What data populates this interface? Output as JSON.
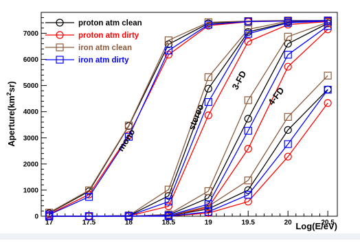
{
  "chart_data": {
    "type": "line",
    "title": "",
    "xlabel": "Log(E/eV)",
    "ylabel": "Aperture(km²sr)",
    "ylabel_parts": {
      "prefix": "Aperture(km",
      "sup": "2",
      "suffix": "sr)"
    },
    "xlim": [
      16.9,
      20.62
    ],
    "ylim": [
      0,
      7800
    ],
    "x_ticks": [
      17,
      17.5,
      18,
      18.5,
      19,
      19.5,
      20,
      20.5
    ],
    "x_tick_labels": [
      "17",
      "17.5",
      "18",
      "18.5",
      "19",
      "19.5",
      "20",
      "20.5"
    ],
    "y_ticks": [
      0,
      1000,
      2000,
      3000,
      4000,
      5000,
      6000,
      7000
    ],
    "y_tick_labels": [
      "0",
      "1000",
      "2000",
      "3000",
      "4000",
      "5000",
      "6000",
      "7000"
    ],
    "grid": false,
    "legend_position": "top-left",
    "x": [
      17,
      17.5,
      18,
      18.5,
      19,
      19.5,
      20,
      20.5
    ],
    "series": [
      {
        "name": "proton atm clean",
        "color": "#000000",
        "marker": "circle",
        "groups": [
          {
            "label": "mono",
            "values": [
              120,
              950,
              3450,
              6580,
              7380,
              7460,
              7480,
              7480
            ]
          },
          {
            "label": "stereo",
            "values": [
              0,
              0,
              20,
              780,
              4880,
              7050,
              7420,
              7480
            ]
          },
          {
            "label": "3-FD",
            "values": [
              0,
              0,
              0,
              50,
              700,
              3730,
              6600,
              7380
            ]
          },
          {
            "label": "4-FD",
            "values": [
              0,
              0,
              0,
              10,
              280,
              1000,
              3300,
              4850
            ]
          }
        ]
      },
      {
        "name": "proton atm dirty",
        "color": "#ff0000",
        "marker": "circle",
        "groups": [
          {
            "label": "mono",
            "values": [
              80,
              830,
              3100,
              6180,
              7290,
              7440,
              7470,
              7470
            ]
          },
          {
            "label": "stereo",
            "values": [
              0,
              0,
              10,
              380,
              3860,
              6680,
              7330,
              7450
            ]
          },
          {
            "label": "3-FD",
            "values": [
              0,
              0,
              0,
              20,
              340,
              2580,
              5720,
              7150
            ]
          },
          {
            "label": "4-FD",
            "values": [
              0,
              0,
              0,
              0,
              120,
              560,
              2280,
              4330
            ]
          }
        ]
      },
      {
        "name": "iron atm clean",
        "color": "#8b5a3c",
        "marker": "square",
        "groups": [
          {
            "label": "mono",
            "values": [
              140,
              990,
              3470,
              6730,
              7420,
              7470,
              7490,
              7490
            ]
          },
          {
            "label": "stereo",
            "values": [
              0,
              0,
              30,
              1020,
              5320,
              7150,
              7460,
              7490
            ]
          },
          {
            "label": "3-FD",
            "values": [
              0,
              0,
              0,
              70,
              960,
              4440,
              6870,
              7420
            ]
          },
          {
            "label": "4-FD",
            "values": [
              0,
              0,
              0,
              20,
              380,
              1370,
              3800,
              5380
            ]
          }
        ]
      },
      {
        "name": "iron atm dirty",
        "color": "#0000ff",
        "marker": "square",
        "groups": [
          {
            "label": "mono",
            "values": [
              60,
              740,
              3040,
              6340,
              7330,
              7450,
              7470,
              7480
            ]
          },
          {
            "label": "stereo",
            "values": [
              0,
              0,
              15,
              560,
              4370,
              6980,
              7400,
              7470
            ]
          },
          {
            "label": "3-FD",
            "values": [
              0,
              0,
              0,
              30,
              460,
              3270,
              6180,
              7280
            ]
          },
          {
            "label": "4-FD",
            "values": [
              0,
              0,
              0,
              0,
              170,
              820,
              2760,
              4840
            ]
          }
        ]
      }
    ],
    "annotations": [
      {
        "text": "mono",
        "x": 18.0,
        "y": 2850,
        "angle": -58
      },
      {
        "text": "stereo",
        "x": 18.88,
        "y": 3750,
        "angle": -68
      },
      {
        "text": "3-FD",
        "x": 19.42,
        "y": 5150,
        "angle": -62
      },
      {
        "text": "4-FD",
        "x": 19.88,
        "y": 4520,
        "angle": -52
      }
    ]
  }
}
